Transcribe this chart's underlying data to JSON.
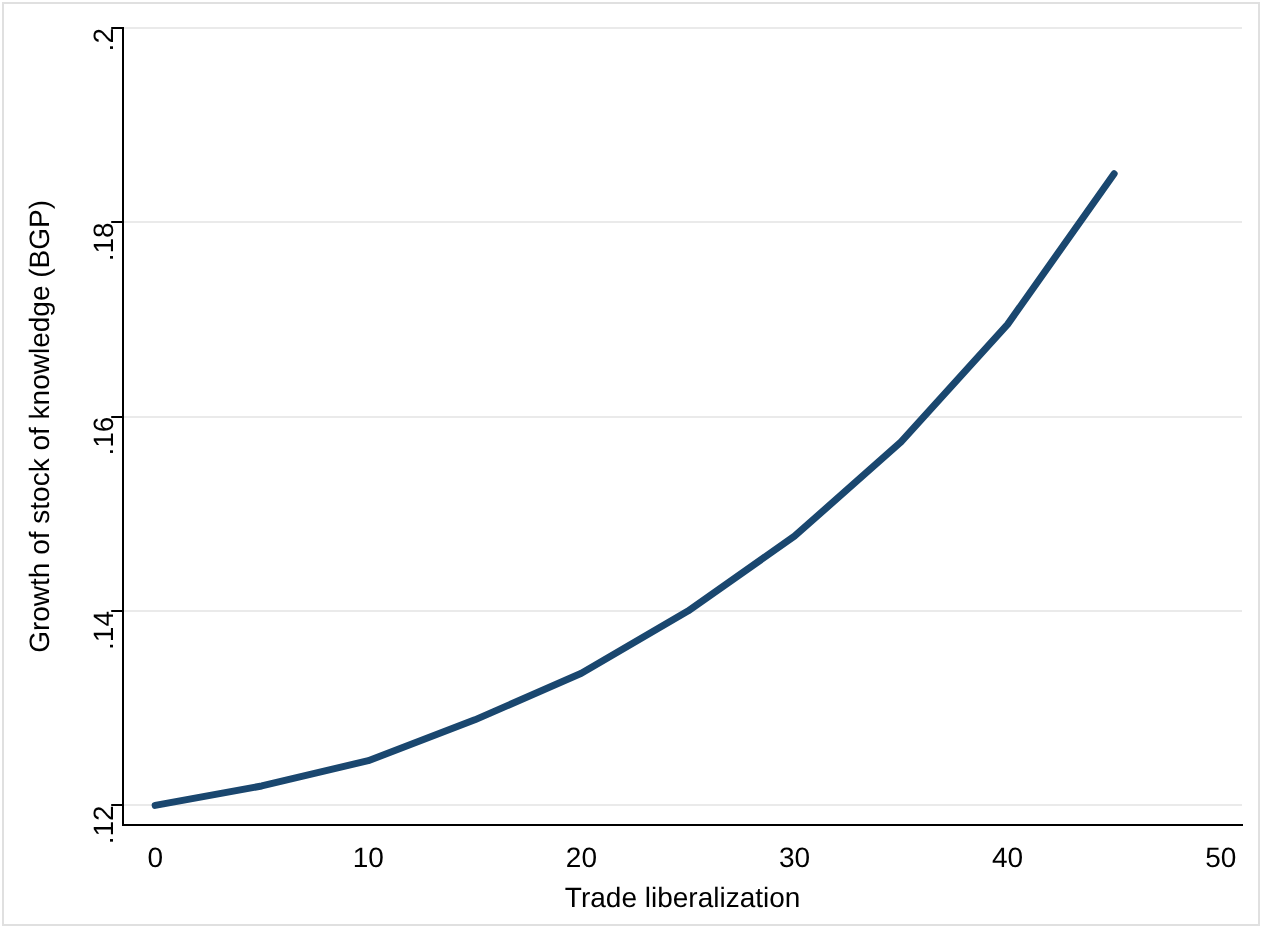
{
  "chart_data": {
    "type": "line",
    "xlabel": "Trade liberalization",
    "ylabel": "Growth of stock of knowledge (BGP)",
    "x": [
      0,
      5,
      10,
      15,
      20,
      25,
      30,
      35,
      40,
      45
    ],
    "series": [
      {
        "color": "#1a476f",
        "values": [
          0.12,
          0.122,
          0.1246,
          0.1288,
          0.1336,
          0.14,
          0.1477,
          0.1574,
          0.1695,
          0.185
        ]
      }
    ],
    "xlim": [
      -1.5,
      51
    ],
    "xticks": [
      0,
      10,
      20,
      30,
      40,
      50
    ],
    "ylim": [
      0.118,
      0.2
    ],
    "yticks": [
      {
        "value": 0.12,
        "label": ".12"
      },
      {
        "value": 0.14,
        "label": ".14"
      },
      {
        "value": 0.16,
        "label": ".16"
      },
      {
        "value": 0.18,
        "label": ".18"
      },
      {
        "value": 0.2,
        "label": ".2"
      }
    ],
    "grid": "y",
    "legend": false,
    "marker": "none",
    "line_style": "solid"
  }
}
